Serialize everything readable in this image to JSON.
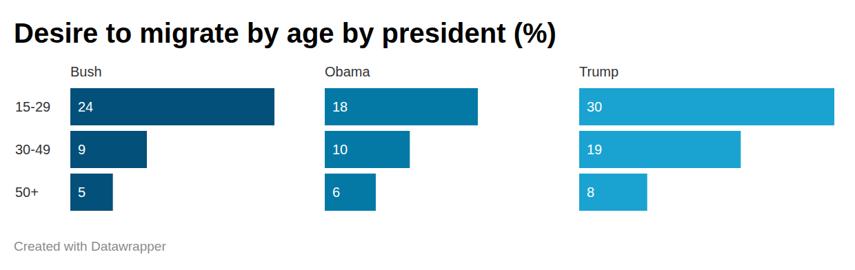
{
  "chart_data": {
    "type": "bar",
    "title": "Desire to migrate by age by president (%)",
    "caption": "Created with Datawrapper",
    "orientation": "horizontal",
    "categories": [
      "15-29",
      "30-49",
      "50+"
    ],
    "series": [
      {
        "name": "Bush",
        "color": "#03507a",
        "values": [
          24,
          9,
          5
        ]
      },
      {
        "name": "Obama",
        "color": "#0479a6",
        "values": [
          18,
          10,
          6
        ]
      },
      {
        "name": "Trump",
        "color": "#1aa3d1",
        "values": [
          30,
          19,
          8
        ]
      }
    ],
    "xlim": [
      0,
      30
    ],
    "data_labels": true,
    "tick_labels": false,
    "grid": false
  }
}
